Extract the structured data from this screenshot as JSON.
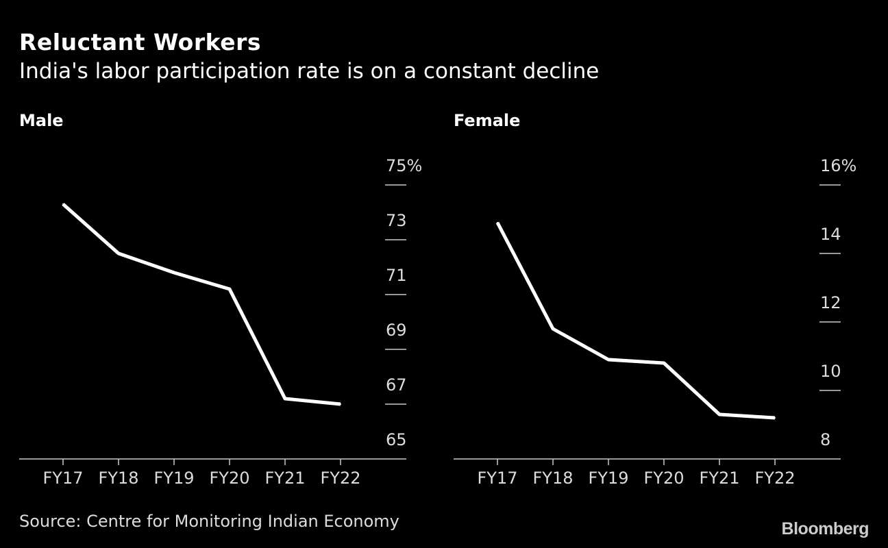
{
  "title": "Reluctant Workers",
  "subtitle": "India's labor participation rate is on a constant decline",
  "source": "Source: Centre for Monitoring Indian Economy",
  "logo": "Bloomberg",
  "colors": {
    "background": "#000000",
    "line": "#ffffff",
    "text": "#dddddd"
  },
  "chart_data": [
    {
      "type": "line",
      "title": "Male",
      "categories": [
        "FY17",
        "FY18",
        "FY19",
        "FY20",
        "FY21",
        "FY22"
      ],
      "values": [
        74.3,
        72.5,
        71.8,
        71.2,
        67.2,
        67.0
      ],
      "ylim": [
        65,
        75
      ],
      "yticks": [
        65,
        67,
        69,
        71,
        73,
        75
      ],
      "ytick_labels": [
        "65",
        "67",
        "69",
        "71",
        "73",
        "75%"
      ],
      "yaxis_side": "right",
      "grid": false
    },
    {
      "type": "line",
      "title": "Female",
      "categories": [
        "FY17",
        "FY18",
        "FY19",
        "FY20",
        "FY21",
        "FY22"
      ],
      "values": [
        14.9,
        11.8,
        10.9,
        10.8,
        9.3,
        9.2
      ],
      "ylim": [
        8,
        16
      ],
      "yticks": [
        8,
        10,
        12,
        14,
        16
      ],
      "ytick_labels": [
        "8",
        "10",
        "12",
        "14",
        "16%"
      ],
      "yaxis_side": "right",
      "grid": false
    }
  ]
}
